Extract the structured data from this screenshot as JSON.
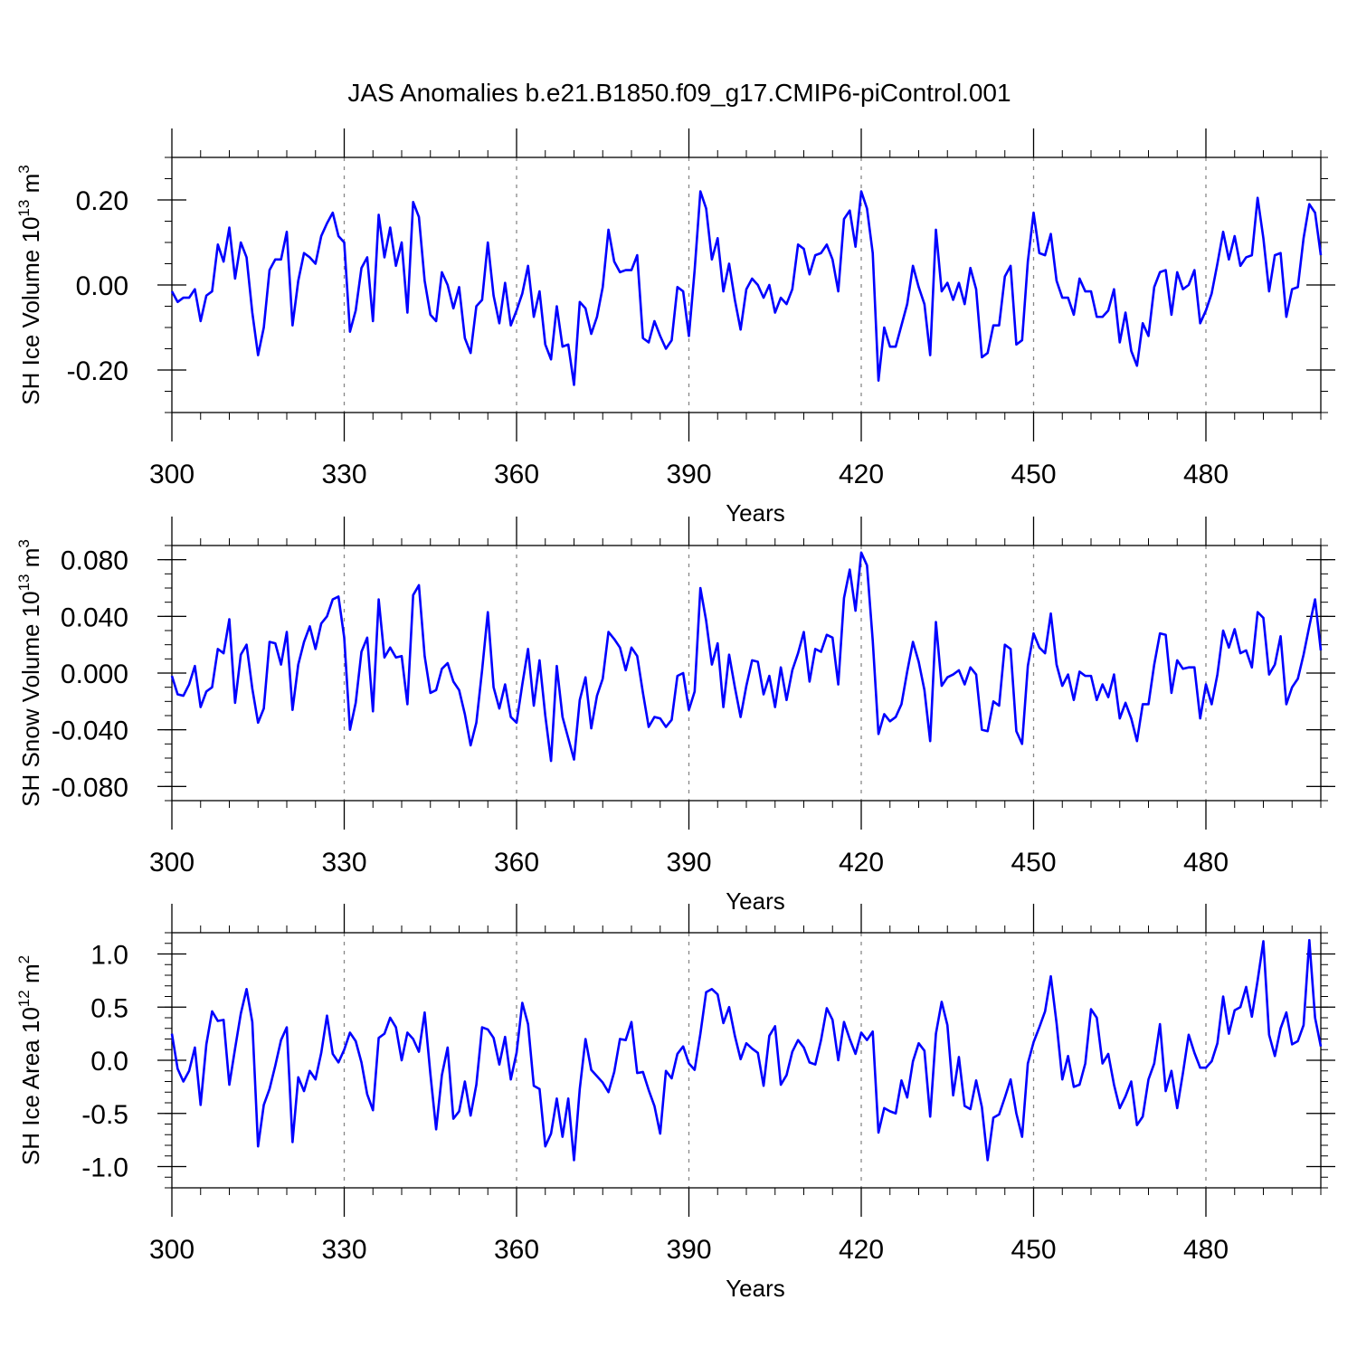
{
  "title": "JAS Anomalies b.e21.B1850.f09_g17.CMIP6-piControl.001",
  "colors": {
    "series": "#0000ff",
    "axis": "#000000",
    "refline": "#888888"
  },
  "chart_data": [
    {
      "type": "line",
      "xlabel": "Years",
      "ylabel": {
        "main": "SH Ice Volume 10",
        "exp": "13",
        "unit": " m",
        "unit_exp": "3"
      },
      "xlim": [
        300,
        500
      ],
      "ylim": [
        -0.3,
        0.3
      ],
      "xticks": [
        300,
        330,
        360,
        390,
        420,
        450,
        480
      ],
      "xtick_labels": [
        "300",
        "330",
        "360",
        "390",
        "420",
        "450",
        "480"
      ],
      "yticks": [
        -0.2,
        0.0,
        0.2
      ],
      "ytick_labels": [
        "-0.20",
        "0.00",
        "0.20"
      ],
      "yminor_step": 0.05,
      "reflines_x": [
        330,
        360,
        390,
        420,
        450,
        480
      ],
      "series": [
        {
          "name": "SH Ice Volume",
          "x_start": 300,
          "values": [
            -0.015,
            -0.04,
            -0.03,
            -0.03,
            -0.01,
            -0.085,
            -0.025,
            -0.015,
            0.095,
            0.055,
            0.135,
            0.015,
            0.1,
            0.065,
            -0.065,
            -0.165,
            -0.1,
            0.035,
            0.06,
            0.06,
            0.125,
            -0.095,
            0.01,
            0.075,
            0.065,
            0.05,
            0.115,
            0.145,
            0.17,
            0.115,
            0.1,
            -0.11,
            -0.06,
            0.04,
            0.065,
            -0.085,
            0.165,
            0.065,
            0.135,
            0.045,
            0.1,
            -0.065,
            0.195,
            0.16,
            0.01,
            -0.07,
            -0.085,
            0.03,
            0.0,
            -0.055,
            -0.005,
            -0.125,
            -0.16,
            -0.05,
            -0.035,
            0.1,
            -0.025,
            -0.09,
            0.005,
            -0.095,
            -0.06,
            -0.02,
            0.045,
            -0.075,
            -0.015,
            -0.14,
            -0.175,
            -0.05,
            -0.145,
            -0.14,
            -0.235,
            -0.04,
            -0.055,
            -0.115,
            -0.075,
            -0.005,
            0.13,
            0.055,
            0.03,
            0.035,
            0.035,
            0.07,
            -0.125,
            -0.135,
            -0.085,
            -0.12,
            -0.15,
            -0.13,
            -0.005,
            -0.015,
            -0.12,
            0.035,
            0.22,
            0.18,
            0.06,
            0.11,
            -0.015,
            0.05,
            -0.035,
            -0.105,
            -0.01,
            0.015,
            0.0,
            -0.03,
            0.0,
            -0.065,
            -0.03,
            -0.045,
            -0.01,
            0.095,
            0.085,
            0.025,
            0.07,
            0.075,
            0.095,
            0.06,
            -0.015,
            0.155,
            0.175,
            0.09,
            0.22,
            0.18,
            0.075,
            -0.225,
            -0.1,
            -0.145,
            -0.145,
            -0.095,
            -0.045,
            0.045,
            -0.005,
            -0.045,
            -0.165,
            0.13,
            -0.015,
            0.005,
            -0.035,
            0.005,
            -0.045,
            0.04,
            -0.01,
            -0.17,
            -0.16,
            -0.095,
            -0.095,
            0.02,
            0.045,
            -0.14,
            -0.13,
            0.055,
            0.17,
            0.075,
            0.07,
            0.12,
            0.01,
            -0.03,
            -0.03,
            -0.07,
            0.015,
            -0.015,
            -0.015,
            -0.075,
            -0.075,
            -0.06,
            -0.01,
            -0.135,
            -0.065,
            -0.155,
            -0.19,
            -0.09,
            -0.12,
            -0.005,
            0.03,
            0.035,
            -0.07,
            0.03,
            -0.01,
            0.0,
            0.035,
            -0.09,
            -0.06,
            -0.02,
            0.05,
            0.125,
            0.06,
            0.115,
            0.045,
            0.065,
            0.07,
            0.205,
            0.11,
            -0.015,
            0.07,
            0.075,
            -0.075,
            -0.01,
            -0.005,
            0.11,
            0.19,
            0.17,
            0.07
          ]
        }
      ]
    },
    {
      "type": "line",
      "xlabel": "Years",
      "ylabel": {
        "main": "SH Snow Volume 10",
        "exp": "13",
        "unit": " m",
        "unit_exp": "3"
      },
      "xlim": [
        300,
        500
      ],
      "ylim": [
        -0.09,
        0.09
      ],
      "xticks": [
        300,
        330,
        360,
        390,
        420,
        450,
        480
      ],
      "xtick_labels": [
        "300",
        "330",
        "360",
        "390",
        "420",
        "450",
        "480"
      ],
      "yticks": [
        -0.08,
        -0.04,
        0.0,
        0.04,
        0.08
      ],
      "ytick_labels": [
        "-0.080",
        "-0.040",
        "0.000",
        "0.040",
        "0.080"
      ],
      "yminor_step": 0.01,
      "reflines_x": [
        330,
        360,
        390,
        420,
        450,
        480
      ],
      "series": [
        {
          "name": "SH Snow Volume",
          "x_start": 300,
          "values": [
            -0.002,
            -0.015,
            -0.016,
            -0.008,
            0.005,
            -0.024,
            -0.013,
            -0.01,
            0.017,
            0.014,
            0.038,
            -0.021,
            0.013,
            0.02,
            -0.011,
            -0.035,
            -0.025,
            0.022,
            0.021,
            0.006,
            0.029,
            -0.026,
            0.006,
            0.022,
            0.033,
            0.017,
            0.035,
            0.04,
            0.052,
            0.054,
            0.025,
            -0.04,
            -0.021,
            0.015,
            0.025,
            -0.027,
            0.052,
            0.011,
            0.018,
            0.011,
            0.012,
            -0.022,
            0.055,
            0.062,
            0.012,
            -0.014,
            -0.012,
            0.003,
            0.007,
            -0.006,
            -0.012,
            -0.029,
            -0.051,
            -0.035,
            0.002,
            0.043,
            -0.01,
            -0.025,
            -0.008,
            -0.031,
            -0.035,
            -0.008,
            0.017,
            -0.023,
            0.009,
            -0.03,
            -0.062,
            0.005,
            -0.031,
            -0.046,
            -0.061,
            -0.019,
            -0.003,
            -0.039,
            -0.016,
            -0.004,
            0.029,
            0.024,
            0.018,
            0.002,
            0.018,
            0.012,
            -0.014,
            -0.038,
            -0.031,
            -0.032,
            -0.038,
            -0.033,
            -0.002,
            0.0,
            -0.026,
            -0.013,
            0.06,
            0.037,
            0.006,
            0.021,
            -0.024,
            0.013,
            -0.01,
            -0.031,
            -0.009,
            0.009,
            0.008,
            -0.015,
            -0.002,
            -0.024,
            0.004,
            -0.019,
            0.002,
            0.014,
            0.029,
            -0.006,
            0.017,
            0.015,
            0.027,
            0.025,
            -0.008,
            0.053,
            0.073,
            0.044,
            0.085,
            0.076,
            0.023,
            -0.043,
            -0.029,
            -0.034,
            -0.031,
            -0.022,
            0.001,
            0.022,
            0.008,
            -0.012,
            -0.048,
            0.036,
            -0.009,
            -0.003,
            -0.001,
            0.002,
            -0.008,
            0.004,
            -0.001,
            -0.04,
            -0.041,
            -0.02,
            -0.023,
            0.02,
            0.017,
            -0.041,
            -0.05,
            0.005,
            0.028,
            0.018,
            0.014,
            0.042,
            0.006,
            -0.009,
            -0.001,
            -0.019,
            0.001,
            -0.002,
            -0.002,
            -0.019,
            -0.008,
            -0.017,
            -0.001,
            -0.032,
            -0.021,
            -0.032,
            -0.048,
            -0.022,
            -0.022,
            0.006,
            0.028,
            0.027,
            -0.014,
            0.009,
            0.003,
            0.004,
            0.004,
            -0.032,
            -0.008,
            -0.022,
            -0.001,
            0.03,
            0.018,
            0.031,
            0.014,
            0.016,
            0.004,
            0.043,
            0.039,
            -0.001,
            0.006,
            0.026,
            -0.022,
            -0.01,
            -0.004,
            0.013,
            0.033,
            0.052,
            0.016
          ]
        }
      ]
    },
    {
      "type": "line",
      "xlabel": "Years",
      "ylabel": {
        "main": "SH Ice Area 10",
        "exp": "12",
        "unit": " m",
        "unit_exp": "2"
      },
      "xlim": [
        300,
        500
      ],
      "ylim": [
        -1.2,
        1.2
      ],
      "xticks": [
        300,
        330,
        360,
        390,
        420,
        450,
        480
      ],
      "xtick_labels": [
        "300",
        "330",
        "360",
        "390",
        "420",
        "450",
        "480"
      ],
      "yticks": [
        -1.0,
        -0.5,
        0.0,
        0.5,
        1.0
      ],
      "ytick_labels": [
        "-1.0",
        "-0.5",
        "0.0",
        "0.5",
        "1.0"
      ],
      "yminor_step": 0.1,
      "reflines_x": [
        330,
        360,
        390,
        420,
        450,
        480
      ],
      "series": [
        {
          "name": "SH Ice Area",
          "x_start": 300,
          "values": [
            0.25,
            -0.08,
            -0.2,
            -0.1,
            0.12,
            -0.42,
            0.15,
            0.46,
            0.37,
            0.38,
            -0.23,
            0.11,
            0.44,
            0.67,
            0.36,
            -0.81,
            -0.42,
            -0.27,
            -0.05,
            0.19,
            0.31,
            -0.77,
            -0.16,
            -0.29,
            -0.1,
            -0.18,
            0.07,
            0.42,
            0.06,
            -0.02,
            0.1,
            0.26,
            0.18,
            -0.02,
            -0.32,
            -0.47,
            0.21,
            0.25,
            0.4,
            0.31,
            0.0,
            0.26,
            0.2,
            0.08,
            0.45,
            -0.13,
            -0.65,
            -0.14,
            0.12,
            -0.55,
            -0.48,
            -0.2,
            -0.52,
            -0.23,
            0.31,
            0.29,
            0.21,
            -0.04,
            0.22,
            -0.18,
            0.07,
            0.54,
            0.34,
            -0.24,
            -0.27,
            -0.81,
            -0.69,
            -0.36,
            -0.72,
            -0.36,
            -0.94,
            -0.27,
            0.2,
            -0.09,
            -0.15,
            -0.21,
            -0.3,
            -0.11,
            0.2,
            0.19,
            0.36,
            -0.12,
            -0.11,
            -0.28,
            -0.43,
            -0.69,
            -0.1,
            -0.17,
            0.06,
            0.13,
            -0.03,
            -0.09,
            0.25,
            0.64,
            0.67,
            0.62,
            0.35,
            0.5,
            0.23,
            0.01,
            0.16,
            0.11,
            0.07,
            -0.24,
            0.23,
            0.32,
            -0.23,
            -0.14,
            0.08,
            0.19,
            0.12,
            -0.02,
            -0.04,
            0.19,
            0.49,
            0.38,
            0.0,
            0.36,
            0.2,
            0.06,
            0.26,
            0.19,
            0.27,
            -0.68,
            -0.45,
            -0.48,
            -0.5,
            -0.19,
            -0.35,
            -0.01,
            0.16,
            0.09,
            -0.53,
            0.25,
            0.55,
            0.33,
            -0.33,
            0.03,
            -0.43,
            -0.46,
            -0.19,
            -0.44,
            -0.94,
            -0.54,
            -0.51,
            -0.35,
            -0.18,
            -0.5,
            -0.72,
            -0.03,
            0.17,
            0.31,
            0.46,
            0.79,
            0.35,
            -0.18,
            0.04,
            -0.25,
            -0.23,
            -0.03,
            0.48,
            0.4,
            -0.03,
            0.06,
            -0.23,
            -0.45,
            -0.34,
            -0.2,
            -0.61,
            -0.53,
            -0.18,
            -0.03,
            0.34,
            -0.29,
            -0.1,
            -0.45,
            -0.12,
            0.24,
            0.07,
            -0.07,
            -0.07,
            -0.01,
            0.16,
            0.6,
            0.25,
            0.47,
            0.5,
            0.69,
            0.41,
            0.75,
            1.12,
            0.24,
            0.04,
            0.3,
            0.45,
            0.15,
            0.18,
            0.33,
            1.13,
            0.4,
            0.13
          ]
        }
      ]
    }
  ]
}
